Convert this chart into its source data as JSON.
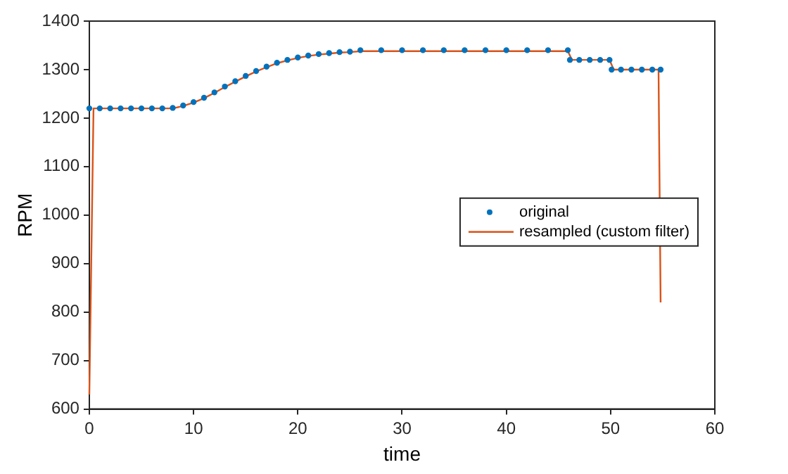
{
  "chart_data": {
    "type": "line",
    "xlabel": "time",
    "ylabel": "RPM",
    "xlim": [
      0,
      60
    ],
    "xticks": [
      0,
      10,
      20,
      30,
      40,
      50,
      60
    ],
    "ylim": [
      600,
      1400
    ],
    "yticks": [
      600,
      700,
      800,
      900,
      1000,
      1100,
      1200,
      1300,
      1400
    ],
    "grid": false,
    "legend": "right",
    "series": [
      {
        "name": "original",
        "type": "scatter",
        "marker": "circle",
        "color": "#0072bd",
        "x": [
          0,
          1,
          2,
          3,
          4,
          5,
          6,
          7,
          8,
          9,
          10,
          11,
          12,
          13,
          14,
          15,
          16,
          17,
          18,
          19,
          20,
          21,
          22,
          23,
          24,
          25,
          26,
          28,
          30,
          32,
          34,
          36,
          38,
          40,
          42,
          44,
          45.9,
          46.1,
          47,
          48,
          49,
          49.9,
          50.1,
          51,
          52,
          53,
          54,
          54.8
        ],
        "values": [
          1220,
          1220,
          1220,
          1220,
          1220,
          1220,
          1220,
          1220,
          1221,
          1226,
          1233,
          1242,
          1253,
          1265,
          1276,
          1287,
          1297,
          1306,
          1314,
          1320,
          1325,
          1329,
          1332,
          1334,
          1336,
          1337,
          1340,
          1340,
          1340,
          1340,
          1340,
          1340,
          1340,
          1340,
          1340,
          1340,
          1340,
          1320,
          1320,
          1320,
          1320,
          1320,
          1300,
          1300,
          1300,
          1300,
          1300,
          1300
        ]
      },
      {
        "name": "resampled (custom filter)",
        "type": "line",
        "color": "#d95319",
        "x": [
          0,
          0.4,
          8,
          9,
          10,
          11,
          12,
          13,
          14,
          15,
          16,
          17,
          18,
          19,
          20,
          21,
          22,
          23,
          24,
          25,
          26,
          45.9,
          46.3,
          49.9,
          50.3,
          54.6,
          54.8
        ],
        "values": [
          630,
          1220,
          1220,
          1225,
          1232,
          1241,
          1252,
          1264,
          1275,
          1286,
          1296,
          1305,
          1313,
          1319,
          1324,
          1328,
          1331,
          1333,
          1335,
          1336,
          1338,
          1338,
          1320,
          1320,
          1300,
          1300,
          820
        ]
      }
    ]
  }
}
